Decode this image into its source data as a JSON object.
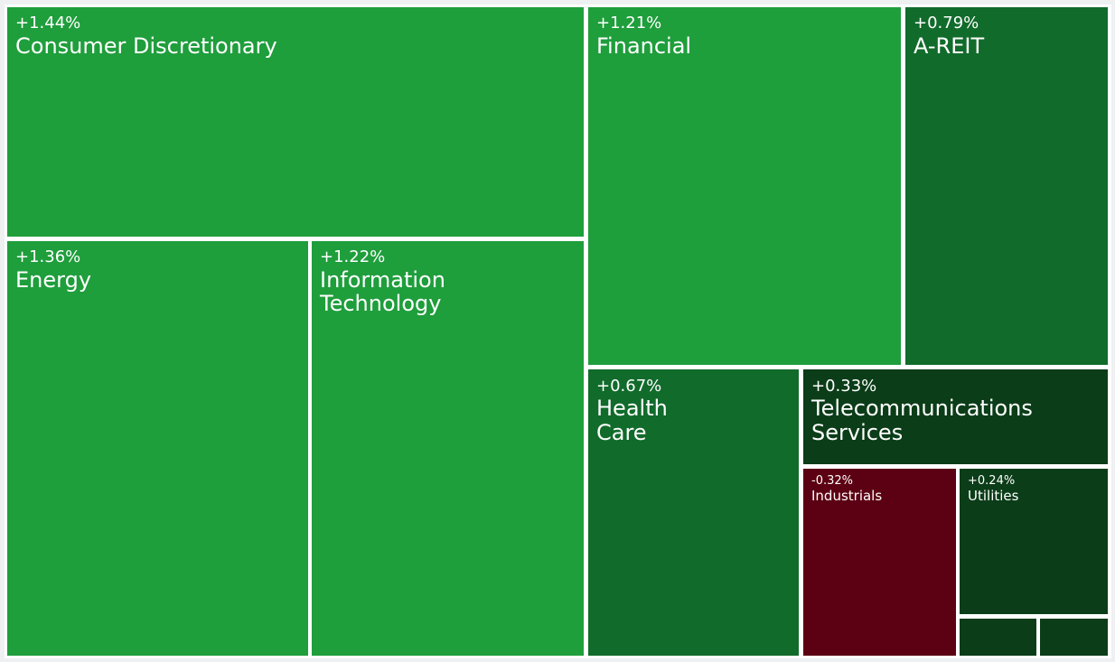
{
  "chart_data": {
    "type": "treemap",
    "colors": {
      "strong_up": "#1f9e3c",
      "mid_up": "#116b2b",
      "weak_up": "#0b3d18",
      "down": "#5c0013",
      "border": "#ffffff",
      "background": "#eef0f2"
    },
    "tiles": [
      {
        "id": "consumer-discretionary",
        "name": "Consumer Discretionary",
        "change": "+1.44%",
        "value": 1.44,
        "color": "#1f9e3c"
      },
      {
        "id": "energy",
        "name": "Energy",
        "change": "+1.36%",
        "value": 1.36,
        "color": "#1f9e3c"
      },
      {
        "id": "information-technology",
        "name": "Information\nTechnology",
        "change": "+1.22%",
        "value": 1.22,
        "color": "#1f9e3c"
      },
      {
        "id": "financial",
        "name": "Financial",
        "change": "+1.21%",
        "value": 1.21,
        "color": "#1f9e3c"
      },
      {
        "id": "a-reit",
        "name": "A-REIT",
        "change": "+0.79%",
        "value": 0.79,
        "color": "#116b2b"
      },
      {
        "id": "health-care",
        "name": "Health\nCare",
        "change": "+0.67%",
        "value": 0.67,
        "color": "#116b2b"
      },
      {
        "id": "telecommunications-services",
        "name": "Telecommunications\nServices",
        "change": "+0.33%",
        "value": 0.33,
        "color": "#0b3d18"
      },
      {
        "id": "industrials",
        "name": "Industrials",
        "change": "-0.32%",
        "value": -0.32,
        "color": "#5c0013"
      },
      {
        "id": "utilities",
        "name": "Utilities",
        "change": "+0.24%",
        "value": 0.24,
        "color": "#0b3d18"
      },
      {
        "id": "unlabeled-1",
        "name": "",
        "change": "",
        "color": "#0b3d18"
      },
      {
        "id": "unlabeled-2",
        "name": "",
        "change": "",
        "color": "#0b3d18"
      }
    ]
  }
}
